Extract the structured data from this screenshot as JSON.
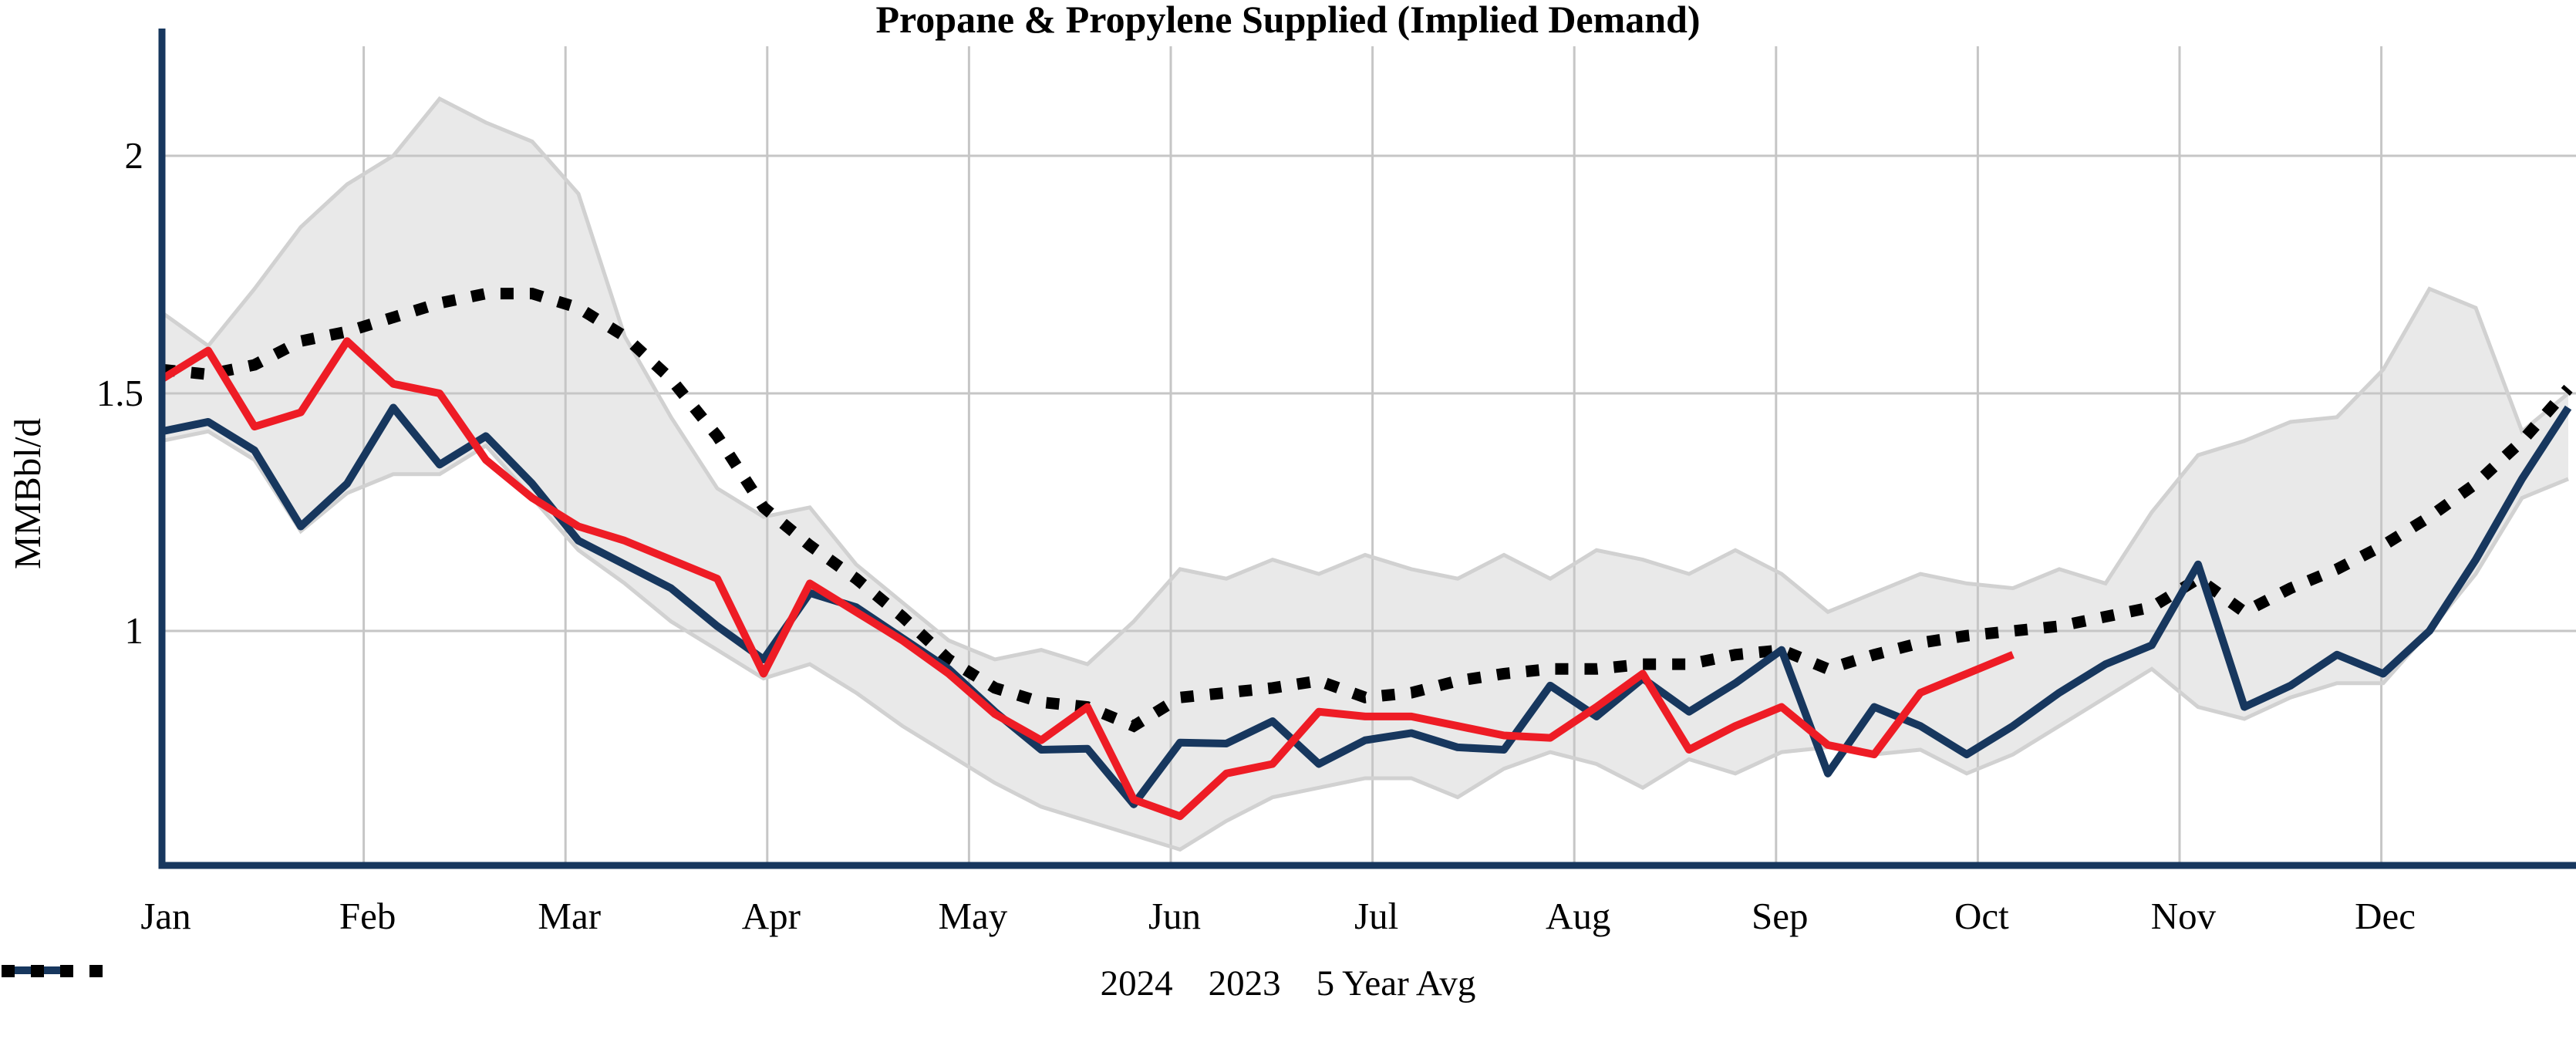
{
  "title": "Propane & Propylene Supplied (Implied Demand)",
  "y_axis": {
    "label": "MMBbl/d",
    "ticks": [
      {
        "label": "2",
        "value": 2
      },
      {
        "label": "1.5",
        "value": 1.5
      },
      {
        "label": "1",
        "value": 1
      }
    ]
  },
  "x_axis": {
    "tick_labels": [
      "Jan",
      "Feb",
      "Mar",
      "Apr",
      "May",
      "Jun",
      "Jul",
      "Aug",
      "Sep",
      "Oct",
      "Nov",
      "Dec"
    ]
  },
  "legend": [
    {
      "label": "2024",
      "style": "solid",
      "color": "#EE1C25"
    },
    {
      "label": "2023",
      "style": "solid",
      "color": "#17375E"
    },
    {
      "label": "5 Year Avg",
      "style": "dotted",
      "color": "#000000"
    }
  ],
  "colors": {
    "accent_red": "#EE1C25",
    "accent_navy": "#17375E",
    "avg_black": "#000000",
    "gridline": "#C6C6C6",
    "band_fill": "#E9E9E9",
    "band_edge": "#D1D1D1",
    "axis": "#17375E",
    "text": "#000000"
  },
  "chart_data": {
    "type": "line",
    "title": "Propane & Propylene Supplied (Implied Demand)",
    "xlabel": "",
    "ylabel": "MMBbl/d",
    "x_unit": "weekly points, Jan through Dec",
    "ylim": [
      0.5,
      2.27
    ],
    "y_gridlines": [
      1,
      1.5,
      2
    ],
    "legend_position": "bottom-center",
    "grid": "both",
    "series": [
      {
        "name": "2024",
        "style": "solid",
        "color": "#EE1C25",
        "values": [
          1.53,
          1.59,
          1.43,
          1.46,
          1.61,
          1.52,
          1.5,
          1.36,
          1.28,
          1.22,
          1.19,
          1.15,
          1.11,
          0.91,
          1.1,
          1.04,
          0.98,
          0.91,
          0.825,
          0.77,
          0.84,
          0.645,
          0.61,
          0.7,
          0.72,
          0.83,
          0.82,
          0.82,
          0.8,
          0.78,
          0.775,
          0.84,
          0.91,
          0.75,
          0.8,
          0.84,
          0.76,
          0.74,
          0.87,
          0.91,
          0.95
        ]
      },
      {
        "name": "2023",
        "style": "solid",
        "color": "#17375E",
        "values": [
          1.42,
          1.44,
          1.38,
          1.22,
          1.31,
          1.47,
          1.35,
          1.41,
          1.31,
          1.19,
          1.14,
          1.09,
          1.01,
          0.94,
          1.08,
          1.05,
          0.985,
          0.92,
          0.83,
          0.75,
          0.752,
          0.635,
          0.765,
          0.763,
          0.81,
          0.72,
          0.77,
          0.785,
          0.755,
          0.75,
          0.885,
          0.82,
          0.9,
          0.83,
          0.89,
          0.96,
          0.7,
          0.84,
          0.8,
          0.74,
          0.8,
          0.87,
          0.93,
          0.97,
          1.14,
          0.84,
          0.885,
          0.95,
          0.91,
          1.0,
          1.15,
          1.32,
          1.47
        ]
      },
      {
        "name": "5 Year Avg",
        "style": "dotted",
        "color": "#000000",
        "values": [
          1.55,
          1.54,
          1.56,
          1.61,
          1.63,
          1.66,
          1.69,
          1.71,
          1.71,
          1.68,
          1.62,
          1.53,
          1.41,
          1.26,
          1.18,
          1.11,
          1.03,
          0.94,
          0.88,
          0.85,
          0.84,
          0.8,
          0.86,
          0.87,
          0.88,
          0.895,
          0.86,
          0.87,
          0.895,
          0.91,
          0.92,
          0.92,
          0.93,
          0.93,
          0.95,
          0.96,
          0.92,
          0.95,
          0.975,
          0.99,
          1.0,
          1.01,
          1.03,
          1.05,
          1.11,
          1.04,
          1.09,
          1.13,
          1.18,
          1.24,
          1.31,
          1.4,
          1.51
        ]
      }
    ],
    "band": {
      "description": "shaded 5-year min/max range",
      "top": [
        1.67,
        1.6,
        1.72,
        1.85,
        1.94,
        2.0,
        2.12,
        2.07,
        2.03,
        1.92,
        1.62,
        1.45,
        1.3,
        1.24,
        1.26,
        1.14,
        1.06,
        0.98,
        0.94,
        0.96,
        0.93,
        1.02,
        1.13,
        1.11,
        1.15,
        1.12,
        1.16,
        1.13,
        1.11,
        1.16,
        1.11,
        1.17,
        1.15,
        1.12,
        1.17,
        1.12,
        1.04,
        1.08,
        1.12,
        1.1,
        1.09,
        1.13,
        1.1,
        1.25,
        1.37,
        1.4,
        1.44,
        1.45,
        1.55,
        1.72,
        1.68,
        1.42,
        1.5
      ],
      "bottom": [
        1.4,
        1.42,
        1.36,
        1.21,
        1.29,
        1.33,
        1.33,
        1.39,
        1.28,
        1.17,
        1.1,
        1.02,
        0.96,
        0.9,
        0.93,
        0.87,
        0.8,
        0.74,
        0.68,
        0.63,
        0.6,
        0.57,
        0.54,
        0.6,
        0.65,
        0.67,
        0.69,
        0.69,
        0.65,
        0.71,
        0.745,
        0.72,
        0.67,
        0.73,
        0.7,
        0.745,
        0.755,
        0.74,
        0.75,
        0.7,
        0.74,
        0.8,
        0.86,
        0.92,
        0.84,
        0.815,
        0.86,
        0.89,
        0.89,
        1.0,
        1.12,
        1.28,
        1.32
      ]
    }
  }
}
